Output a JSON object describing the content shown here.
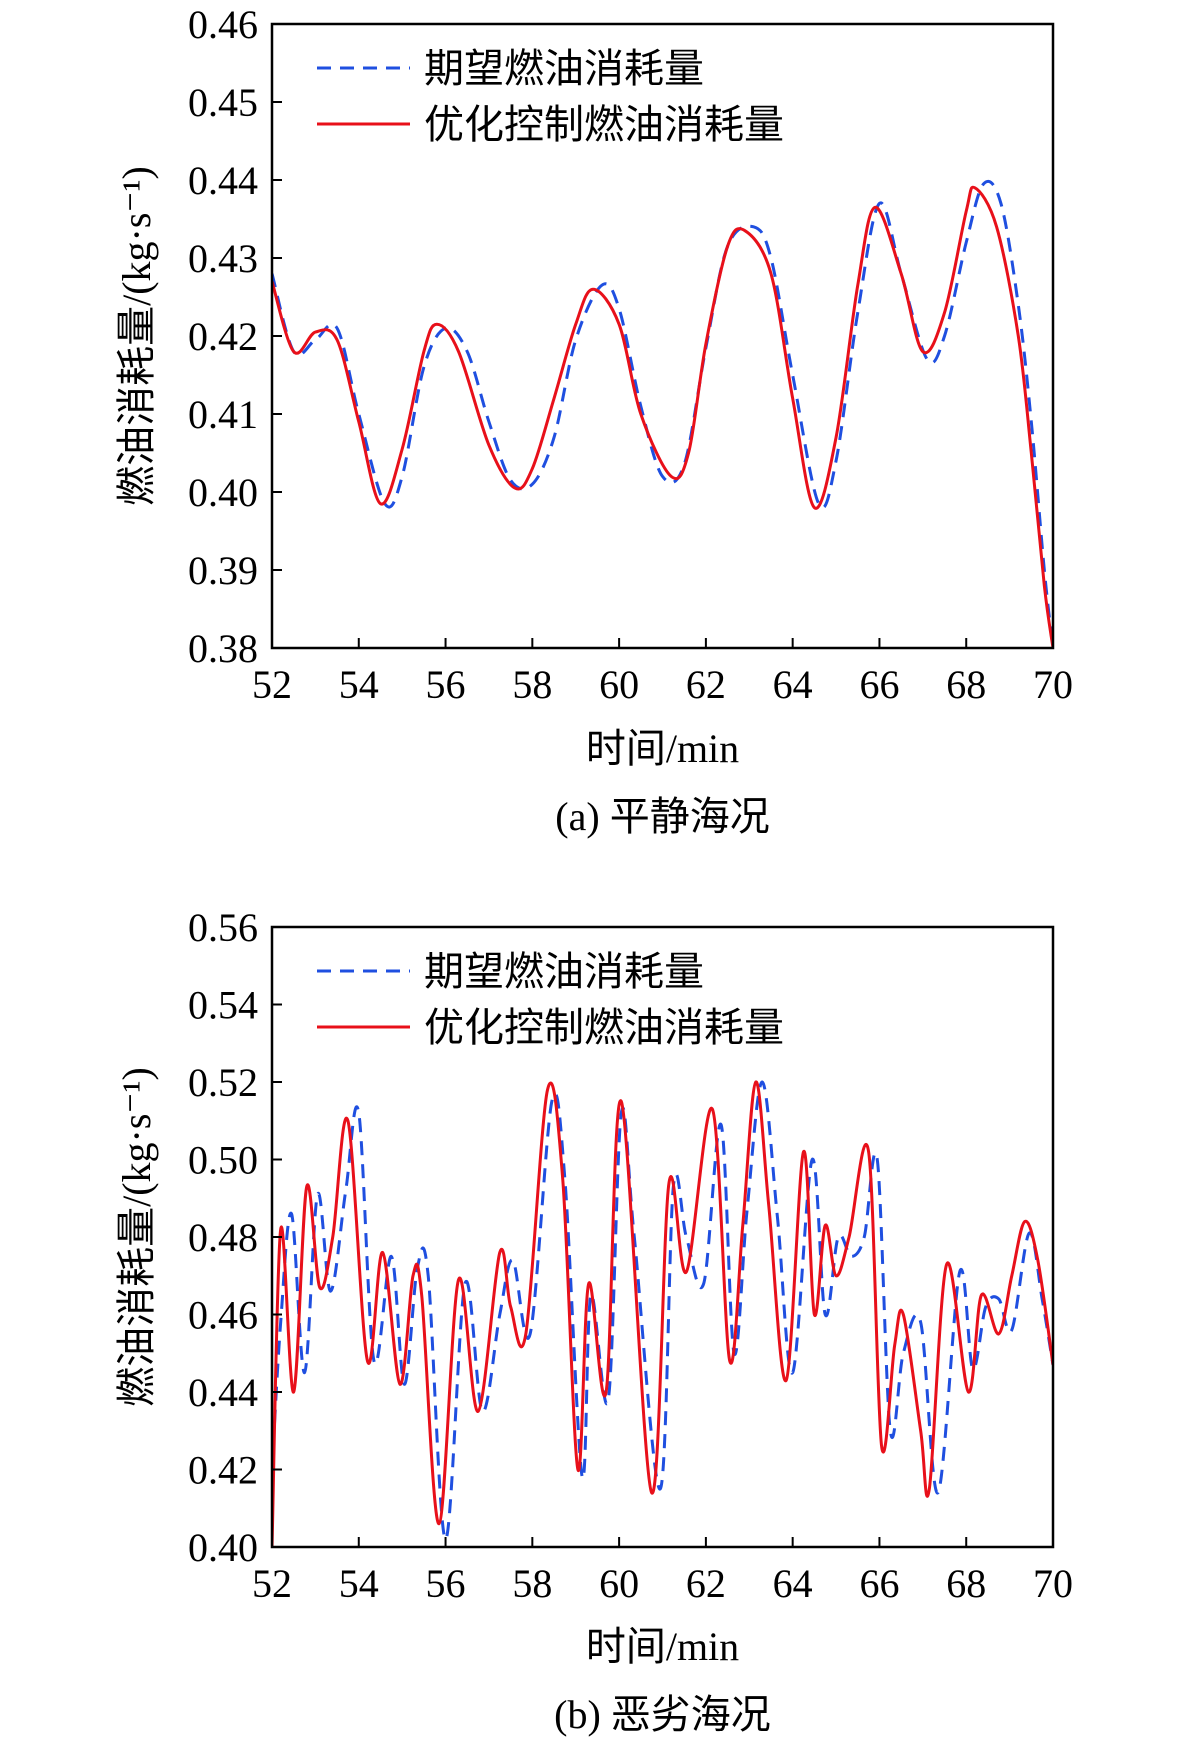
{
  "chart_data": [
    {
      "type": "line",
      "caption": "(a) 平静海况",
      "xlabel": "时间/min",
      "ylabel": "燃油消耗量/(kg·s⁻¹)",
      "xlim": [
        52,
        70
      ],
      "ylim": [
        0.38,
        0.46
      ],
      "xticks": [
        52,
        54,
        56,
        58,
        60,
        62,
        64,
        66,
        68,
        70
      ],
      "yticks": [
        0.38,
        0.39,
        0.4,
        0.41,
        0.42,
        0.43,
        0.44,
        0.45,
        0.46
      ],
      "xtick_labels": [
        "52",
        "54",
        "56",
        "58",
        "60",
        "62",
        "64",
        "66",
        "68",
        "70"
      ],
      "ytick_labels": [
        "0.38",
        "0.39",
        "0.40",
        "0.41",
        "0.42",
        "0.43",
        "0.44",
        "0.45",
        "0.46"
      ],
      "legend_position": "top-left",
      "grid": false,
      "series": [
        {
          "name": "期望燃油消耗量",
          "color": "#1f4fe0",
          "dash": "dashed",
          "x": [
            52.0,
            52.5,
            53.0,
            53.5,
            54.0,
            54.6,
            55.0,
            55.5,
            56.0,
            56.5,
            57.0,
            57.5,
            58.0,
            58.5,
            59.0,
            59.6,
            60.0,
            60.5,
            61.0,
            61.5,
            62.0,
            62.5,
            63.1,
            63.5,
            64.0,
            64.6,
            65.0,
            65.5,
            66.0,
            66.5,
            67.1,
            67.5,
            68.0,
            68.4,
            68.8,
            69.2,
            69.5,
            69.8,
            70.0
          ],
          "y": [
            0.428,
            0.418,
            0.4195,
            0.421,
            0.41,
            0.3985,
            0.402,
            0.416,
            0.421,
            0.418,
            0.409,
            0.4015,
            0.401,
            0.407,
            0.4195,
            0.4265,
            0.4235,
            0.411,
            0.402,
            0.4035,
            0.4185,
            0.4315,
            0.434,
            0.43,
            0.415,
            0.3985,
            0.404,
            0.423,
            0.437,
            0.428,
            0.417,
            0.42,
            0.432,
            0.4395,
            0.437,
            0.424,
            0.409,
            0.39,
            0.38
          ]
        },
        {
          "name": "优化控制燃油消耗量",
          "color": "#e8101a",
          "dash": "solid",
          "x": [
            52.0,
            52.5,
            53.0,
            53.5,
            54.0,
            54.5,
            55.0,
            55.5,
            55.8,
            56.3,
            57.0,
            57.6,
            58.0,
            58.5,
            59.0,
            59.4,
            60.0,
            60.5,
            61.2,
            61.6,
            62.0,
            62.5,
            62.9,
            63.5,
            64.0,
            64.5,
            65.0,
            65.5,
            65.9,
            66.5,
            67.0,
            67.5,
            68.0,
            68.2,
            68.7,
            69.2,
            69.5,
            69.8,
            70.0
          ],
          "y": [
            0.427,
            0.418,
            0.4205,
            0.4195,
            0.409,
            0.3985,
            0.4055,
            0.418,
            0.4215,
            0.418,
            0.406,
            0.4005,
            0.403,
            0.412,
            0.4215,
            0.426,
            0.4215,
            0.41,
            0.402,
            0.405,
            0.419,
            0.4315,
            0.4335,
            0.428,
            0.412,
            0.398,
            0.407,
            0.4265,
            0.4365,
            0.428,
            0.418,
            0.423,
            0.436,
            0.439,
            0.434,
            0.42,
            0.405,
            0.388,
            0.38
          ]
        }
      ]
    },
    {
      "type": "line",
      "caption": "(b) 恶劣海况",
      "xlabel": "时间/min",
      "ylabel": "燃油消耗量/(kg·s⁻¹)",
      "xlim": [
        52,
        70
      ],
      "ylim": [
        0.4,
        0.56
      ],
      "xticks": [
        52,
        54,
        56,
        58,
        60,
        62,
        64,
        66,
        68,
        70
      ],
      "yticks": [
        0.4,
        0.42,
        0.44,
        0.46,
        0.48,
        0.5,
        0.52,
        0.54,
        0.56
      ],
      "xtick_labels": [
        "52",
        "54",
        "56",
        "58",
        "60",
        "62",
        "64",
        "66",
        "68",
        "70"
      ],
      "ytick_labels": [
        "0.40",
        "0.42",
        "0.44",
        "0.46",
        "0.48",
        "0.50",
        "0.52",
        "0.54",
        "0.56"
      ],
      "legend_position": "top-left",
      "grid": false,
      "series": [
        {
          "name": "期望燃油消耗量",
          "color": "#1f4fe0",
          "dash": "dashed",
          "x": [
            52.0,
            52.2,
            52.45,
            52.75,
            53.05,
            53.35,
            53.7,
            54.0,
            54.35,
            54.75,
            55.05,
            55.35,
            55.6,
            56.0,
            56.45,
            56.85,
            57.25,
            57.55,
            57.95,
            58.45,
            58.75,
            59.15,
            59.35,
            59.75,
            60.05,
            60.35,
            60.95,
            61.25,
            61.55,
            61.95,
            62.35,
            62.65,
            62.95,
            63.3,
            63.65,
            64.0,
            64.45,
            64.75,
            65.05,
            65.35,
            65.65,
            65.95,
            66.25,
            66.55,
            66.95,
            67.35,
            67.85,
            68.15,
            68.45,
            68.75,
            69.05,
            69.45,
            69.75,
            70.0
          ],
          "y": [
            0.42,
            0.458,
            0.486,
            0.445,
            0.491,
            0.466,
            0.492,
            0.512,
            0.448,
            0.475,
            0.442,
            0.472,
            0.47,
            0.402,
            0.468,
            0.435,
            0.46,
            0.474,
            0.455,
            0.515,
            0.495,
            0.418,
            0.465,
            0.438,
            0.512,
            0.48,
            0.415,
            0.493,
            0.48,
            0.468,
            0.509,
            0.45,
            0.487,
            0.52,
            0.485,
            0.445,
            0.5,
            0.46,
            0.48,
            0.475,
            0.48,
            0.5,
            0.43,
            0.45,
            0.458,
            0.414,
            0.471,
            0.446,
            0.462,
            0.464,
            0.456,
            0.481,
            0.464,
            0.447
          ]
        },
        {
          "name": "优化控制燃油消耗量",
          "color": "#e8101a",
          "dash": "solid",
          "x": [
            52.0,
            52.2,
            52.5,
            52.8,
            53.1,
            53.4,
            53.75,
            54.2,
            54.55,
            54.95,
            55.25,
            55.45,
            55.85,
            56.3,
            56.75,
            57.25,
            57.5,
            57.85,
            58.35,
            58.7,
            59.05,
            59.3,
            59.7,
            60.05,
            60.75,
            61.15,
            61.55,
            62.15,
            62.55,
            62.85,
            63.15,
            63.45,
            63.85,
            64.25,
            64.5,
            64.75,
            65.0,
            65.3,
            65.75,
            66.05,
            66.35,
            66.55,
            66.95,
            67.15,
            67.55,
            68.05,
            68.35,
            68.75,
            69.05,
            69.35,
            69.65,
            70.0
          ],
          "y": [
            0.4,
            0.482,
            0.44,
            0.493,
            0.467,
            0.48,
            0.51,
            0.448,
            0.476,
            0.442,
            0.47,
            0.465,
            0.406,
            0.469,
            0.435,
            0.476,
            0.462,
            0.455,
            0.518,
            0.495,
            0.42,
            0.468,
            0.44,
            0.515,
            0.414,
            0.494,
            0.471,
            0.513,
            0.448,
            0.483,
            0.52,
            0.488,
            0.443,
            0.502,
            0.46,
            0.483,
            0.47,
            0.48,
            0.502,
            0.426,
            0.452,
            0.46,
            0.43,
            0.415,
            0.473,
            0.44,
            0.465,
            0.455,
            0.47,
            0.484,
            0.474,
            0.447
          ]
        }
      ]
    }
  ]
}
